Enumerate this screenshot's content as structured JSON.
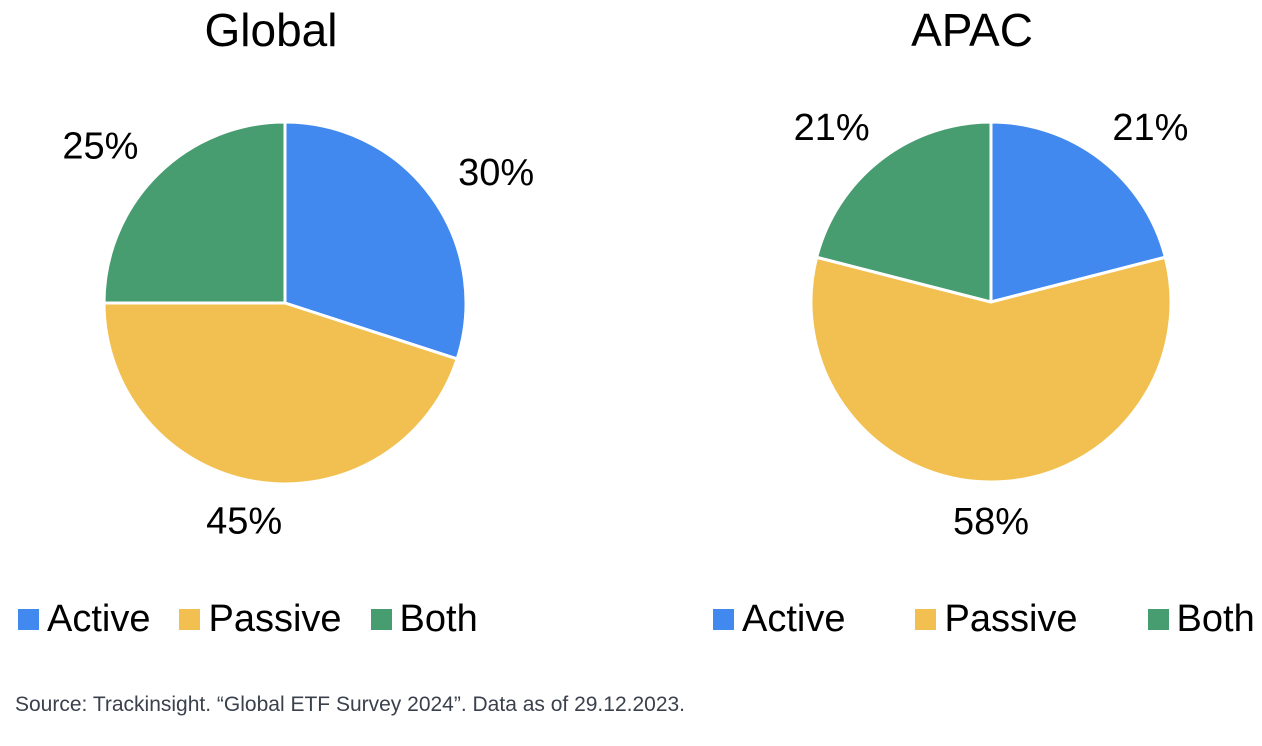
{
  "chart_data": [
    {
      "type": "pie",
      "title": "Global",
      "labels": [
        "Active",
        "Passive",
        "Both"
      ],
      "values": [
        30,
        45,
        25
      ],
      "value_labels": [
        "30%",
        "45%",
        "25%"
      ],
      "colors": [
        "#4189EE",
        "#F2C050",
        "#489D70"
      ],
      "start_angle_deg": 0,
      "direction": "clockwise",
      "legend_position": "bottom",
      "slice_separator_color": "#FFFFFF"
    },
    {
      "type": "pie",
      "title": "APAC",
      "labels": [
        "Active",
        "Passive",
        "Both"
      ],
      "values": [
        21,
        58,
        21
      ],
      "value_labels": [
        "21%",
        "58%",
        "21%"
      ],
      "colors": [
        "#4189EE",
        "#F2C050",
        "#489D70"
      ],
      "start_angle_deg": 0,
      "direction": "clockwise",
      "legend_position": "bottom",
      "slice_separator_color": "#FFFFFF"
    }
  ],
  "source_note": "Source: Trackinsight. “Global ETF Survey 2024”. Data as of 29.12.2023.",
  "text_color": "#000000",
  "source_color": "#3A414D",
  "background": "#FFFFFF"
}
